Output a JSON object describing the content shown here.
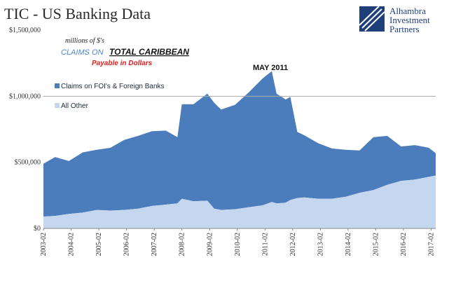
{
  "header": {
    "title": "TIC - US Banking Data",
    "logo": {
      "line1": "Alhambra",
      "line2": "Investment",
      "line3": "Partners",
      "icon": "alhambra-logo-icon"
    }
  },
  "notes": {
    "units": "millions of $'s",
    "claims_prefix": "CLAIMS ON",
    "claims_emphasis": "TOTAL CARIBBEAN",
    "payable": "Payable in Dollars",
    "peak_label": "MAY 2011"
  },
  "colors": {
    "foreign_banks": "#4b7dbd",
    "all_other": "#c5d7ef",
    "ref_line": "#aaaaaa"
  },
  "chart_data": {
    "type": "area",
    "stacked": true,
    "title": "TIC - US Banking Data",
    "xlabel": "",
    "ylabel": "",
    "ylim": [
      0,
      1500000
    ],
    "yticks": [
      0,
      500000,
      1000000,
      1500000
    ],
    "ytick_labels": [
      "$0",
      "$500,000",
      "$1,000,000",
      "$1,500,000"
    ],
    "xtick_labels": [
      "2003-02",
      "2004-02",
      "2005-02",
      "2006-02",
      "2007-02",
      "2008-02",
      "2009-02",
      "2010-02",
      "2011-02",
      "2012-02",
      "2013-02",
      "2014-02",
      "2015-02",
      "2016-02",
      "2017-02"
    ],
    "reference_line": 1000000,
    "grid": false,
    "legend_position": "left-middle",
    "annotations": [
      {
        "text": "MAY 2011",
        "x": 2011.33
      }
    ],
    "x": [
      2003.08,
      2003.5,
      2004.0,
      2004.5,
      2005.0,
      2005.5,
      2006.0,
      2006.5,
      2007.0,
      2007.5,
      2007.92,
      2008.08,
      2008.5,
      2009.0,
      2009.25,
      2009.5,
      2010.0,
      2010.5,
      2011.0,
      2011.33,
      2011.5,
      2011.83,
      2012.0,
      2012.25,
      2012.5,
      2013.0,
      2013.5,
      2014.0,
      2014.5,
      2015.0,
      2015.5,
      2016.0,
      2016.5,
      2017.0,
      2017.25
    ],
    "series": [
      {
        "name": "Claims on FOI's & Foreign Banks",
        "values": [
          400000,
          445000,
          400000,
          455000,
          455000,
          475000,
          530000,
          550000,
          565000,
          560000,
          500000,
          715000,
          735000,
          810000,
          800000,
          760000,
          790000,
          870000,
          960000,
          990000,
          830000,
          780000,
          780000,
          500000,
          470000,
          420000,
          380000,
          355000,
          320000,
          400000,
          370000,
          260000,
          260000,
          220000,
          170000
        ]
      },
      {
        "name": "All Other",
        "values": [
          90000,
          95000,
          110000,
          120000,
          140000,
          135000,
          140000,
          150000,
          170000,
          180000,
          190000,
          225000,
          205000,
          210000,
          150000,
          140000,
          145000,
          160000,
          175000,
          200000,
          190000,
          195000,
          215000,
          230000,
          235000,
          225000,
          225000,
          240000,
          270000,
          290000,
          330000,
          360000,
          370000,
          390000,
          400000
        ]
      }
    ]
  }
}
